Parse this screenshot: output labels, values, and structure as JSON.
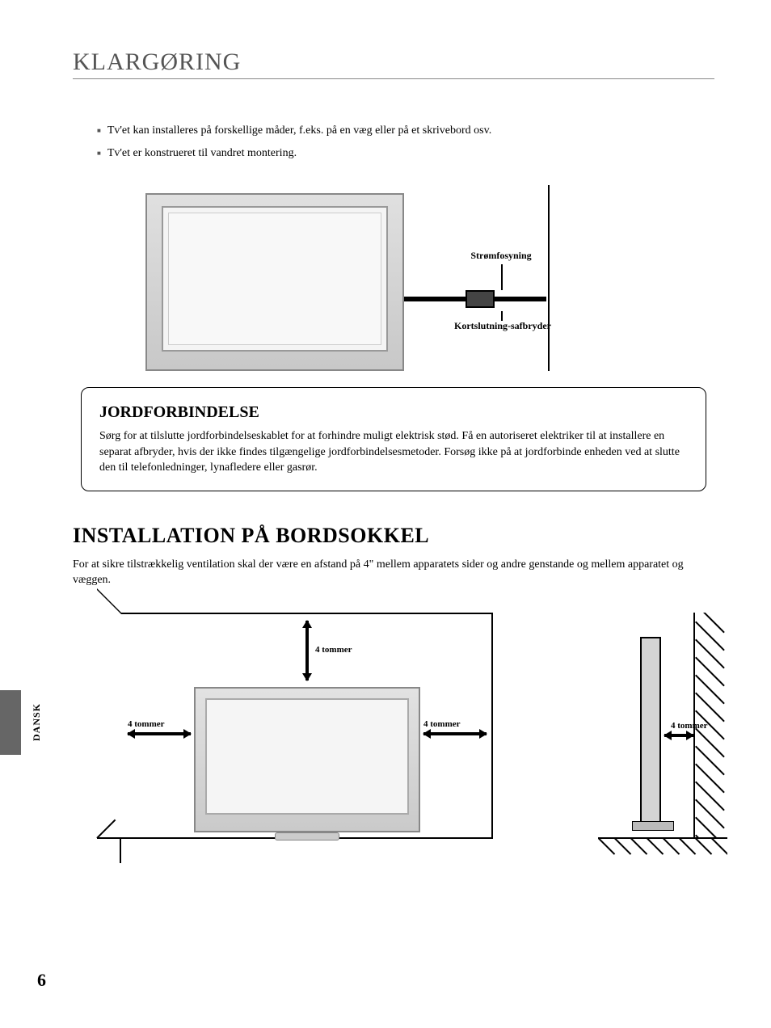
{
  "title": "KLARGØRING",
  "bullets": [
    "Tv'et kan installeres på forskellige måder, f.eks. på en væg eller på et skrivebord osv.",
    "Tv'et er konstrueret til vandret montering."
  ],
  "diagram1": {
    "label_power": "Strømfosyning",
    "label_breaker": "Kortslutning-safbryder"
  },
  "info_box": {
    "heading": "JORDFORBINDELSE",
    "body": "Sørg for at tilslutte jordforbindelseskablet for at forhindre muligt elektrisk stød. Få en autoriseret elektriker til at installere en separat afbryder, hvis der ikke findes tilgængelige jordforbindelsesmetoder.  Forsøg ikke på at jordforbinde enheden ved at slutte den til telefonledninger, lynafledere eller gasrør."
  },
  "section2": {
    "heading": "INSTALLATION PÅ BORDSOKKEL",
    "body": "For at sikre tilstrækkelig ventilation skal der være en afstand på 4\" mellem apparatets sider og andre genstande og mellem apparatet og væggen."
  },
  "dim_label": "4 tommer",
  "side_tab_label": "DANSK",
  "page_number": "6",
  "colors": {
    "text": "#000000",
    "muted": "#555555",
    "tv_body": "#d0d0d0",
    "border": "#888888"
  }
}
